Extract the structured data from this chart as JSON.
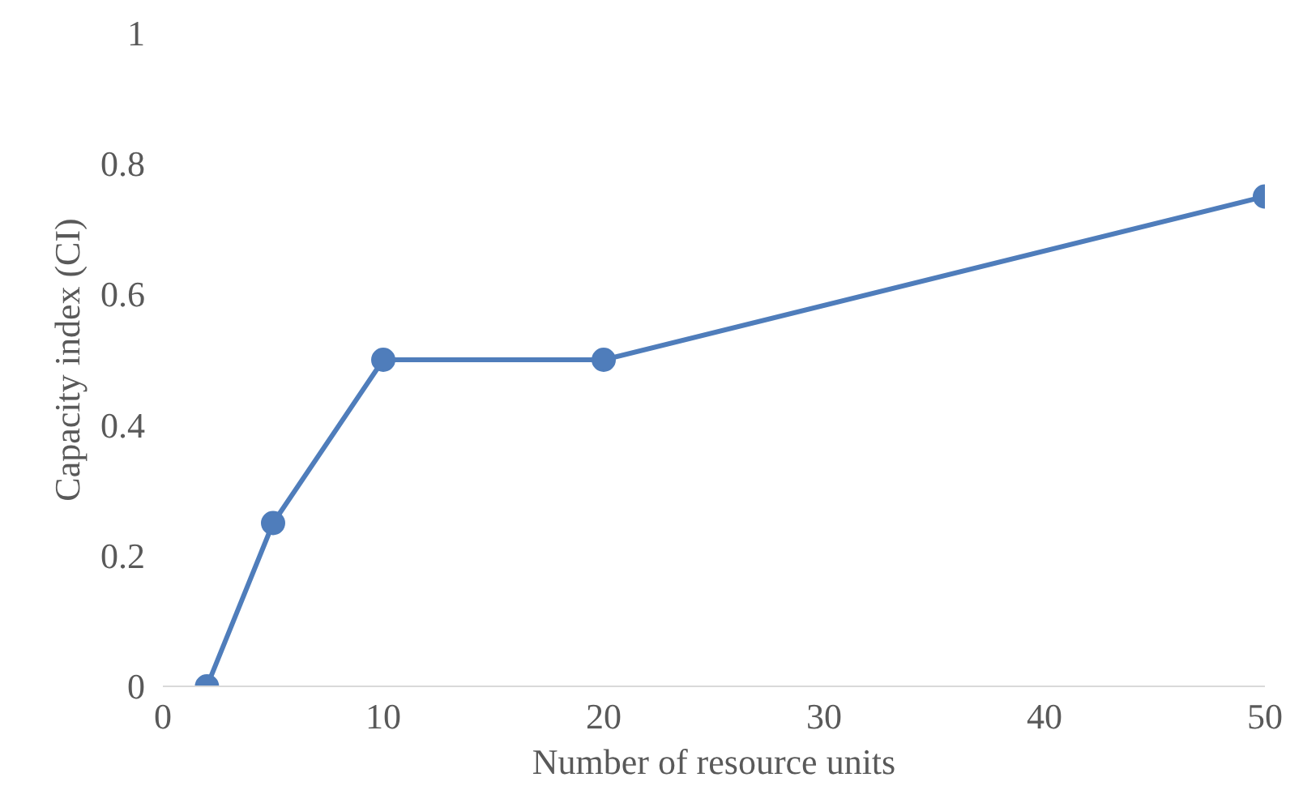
{
  "chart_data": {
    "type": "line",
    "xlabel": "Number of resource units",
    "ylabel": "Capacity index (CI)",
    "x": [
      2,
      5,
      10,
      20,
      50
    ],
    "series": [
      {
        "color": "#4f7dbb",
        "values": [
          0,
          0.25,
          0.5,
          0.5,
          0.75
        ]
      }
    ],
    "xlim": [
      0,
      50
    ],
    "xticks": [
      0,
      10,
      20,
      30,
      40,
      50
    ],
    "ylim": [
      0,
      1
    ],
    "yticks": [
      0,
      0.2,
      0.4,
      0.6,
      0.8,
      1
    ],
    "grid": false,
    "marker": "circle",
    "line_style": "solid"
  }
}
